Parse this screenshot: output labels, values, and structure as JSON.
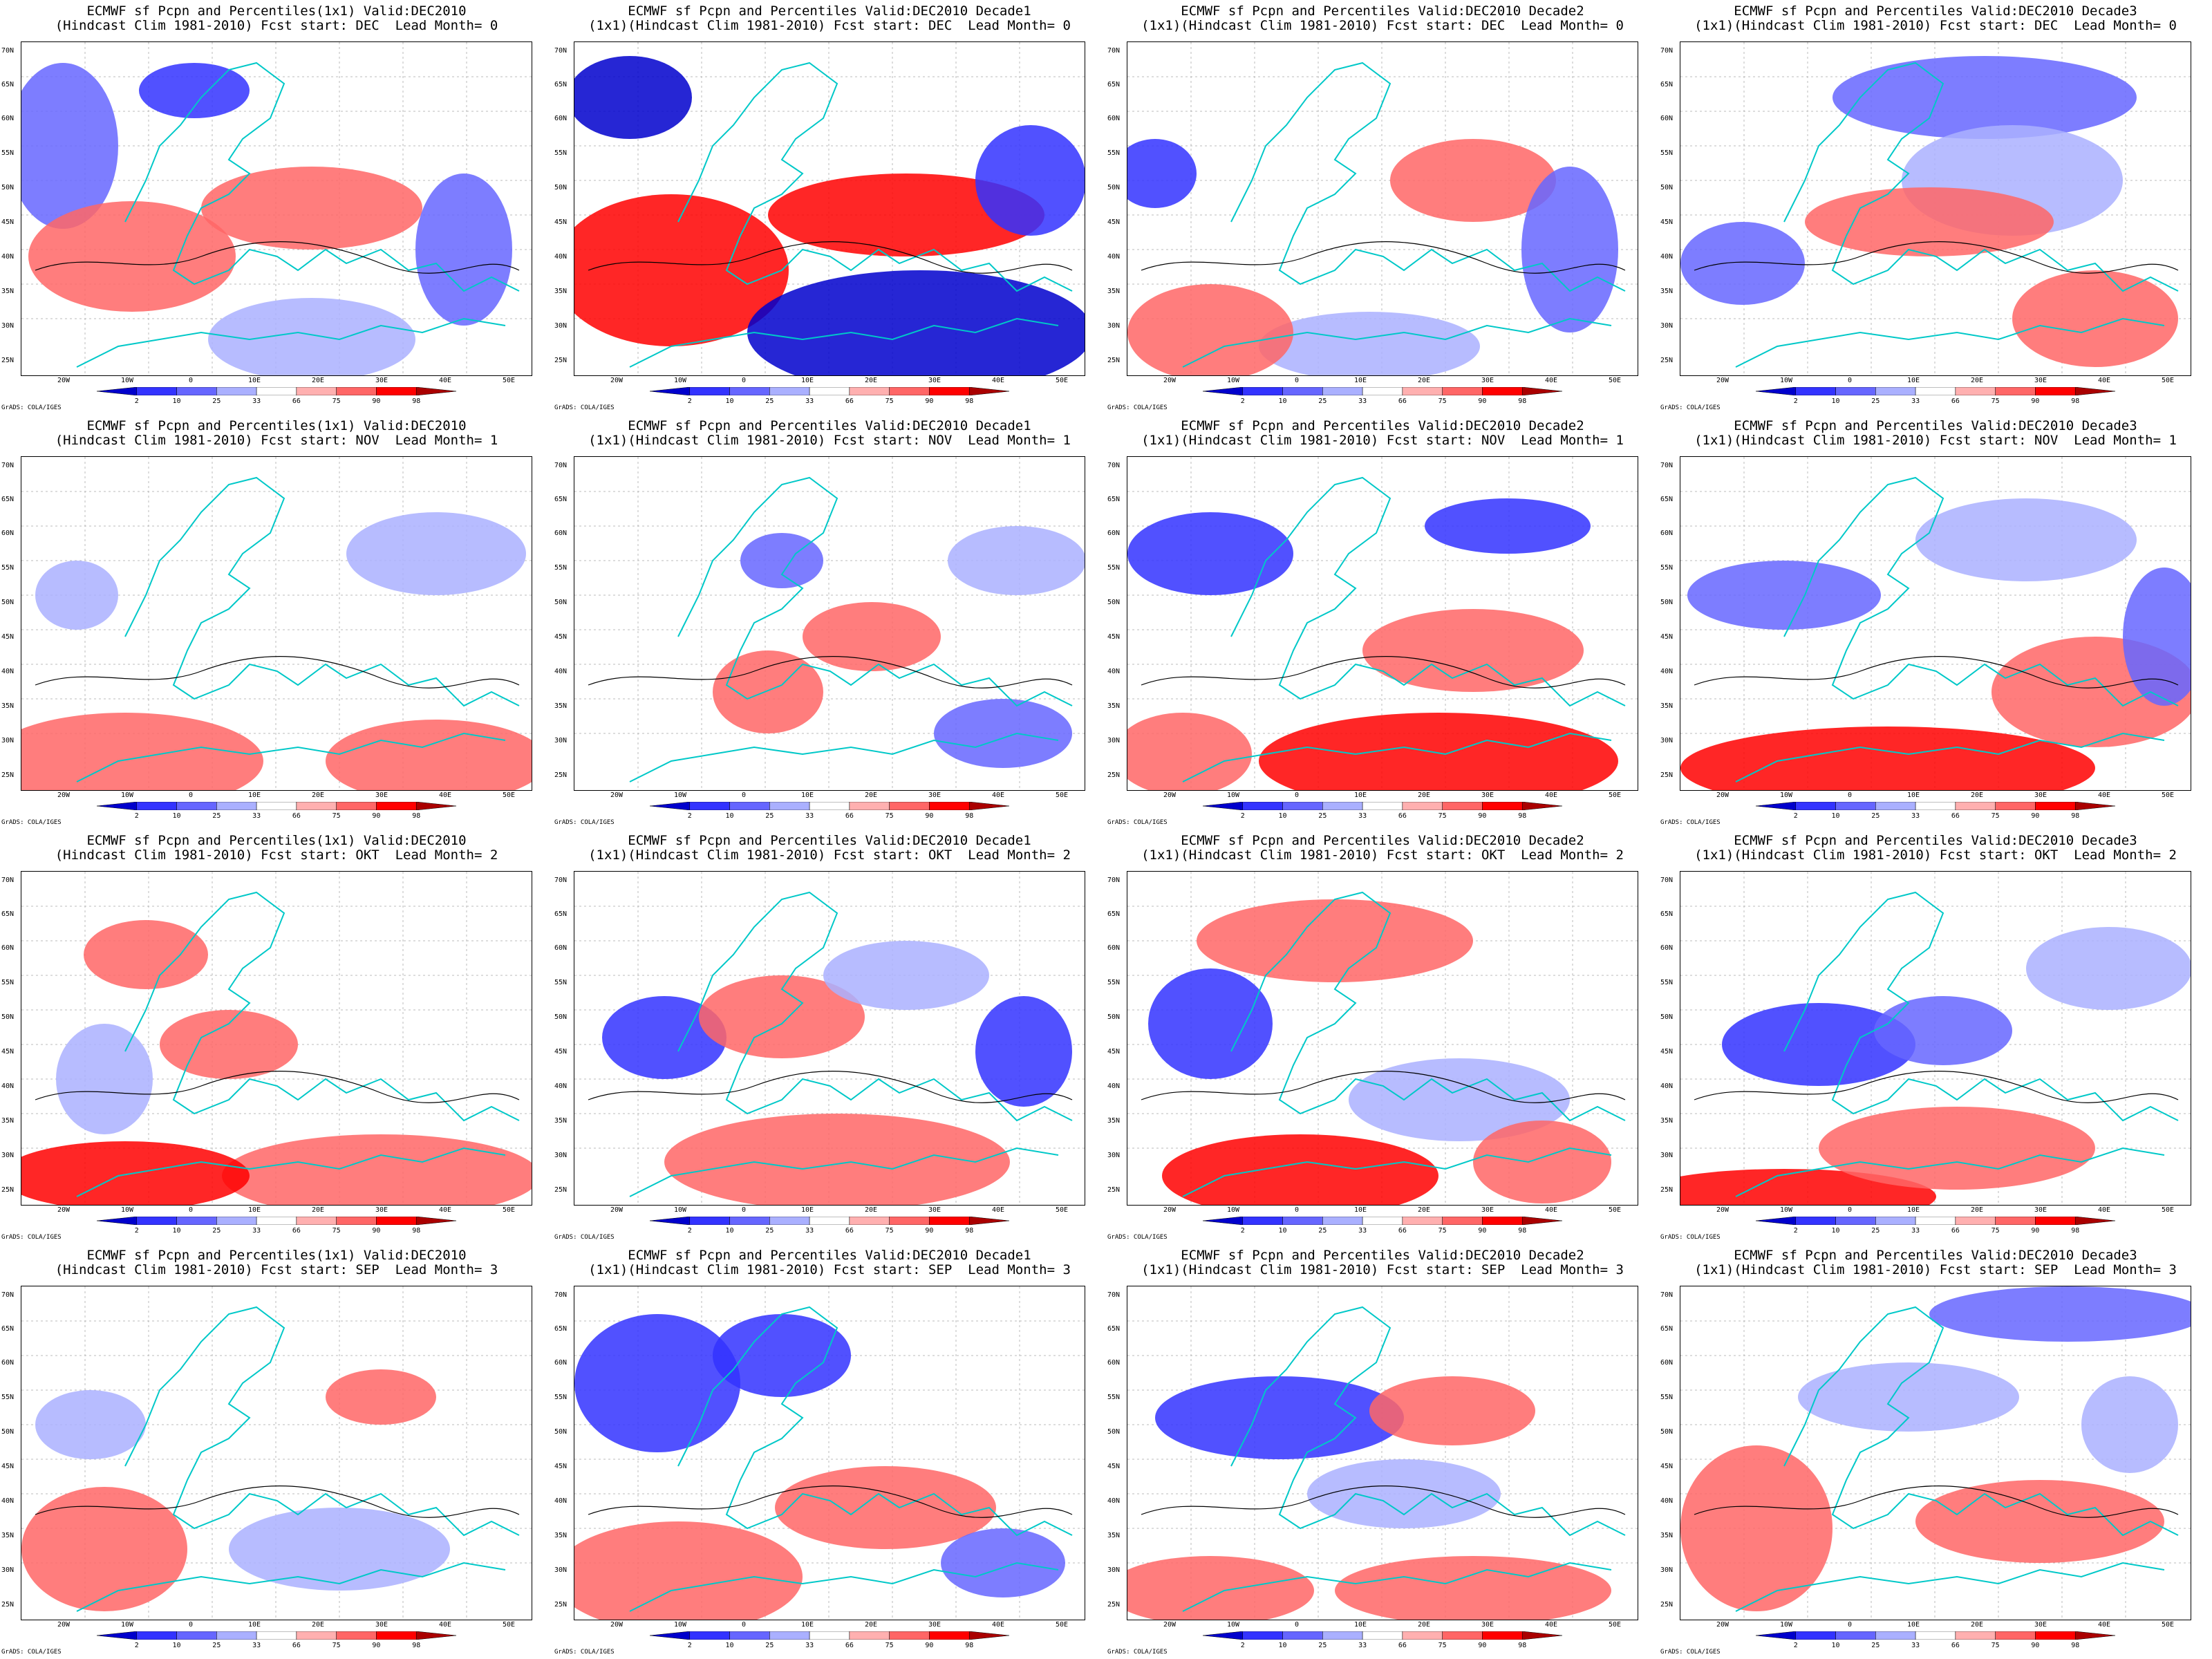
{
  "figure": {
    "lat_labels": [
      "70N",
      "65N",
      "60N",
      "55N",
      "50N",
      "45N",
      "40N",
      "35N",
      "30N",
      "25N"
    ],
    "lon_labels": [
      "20W",
      "10W",
      "0",
      "10E",
      "20E",
      "30E",
      "40E",
      "50E"
    ],
    "colorbar_labels": [
      "2",
      "10",
      "25",
      "33",
      "66",
      "75",
      "90",
      "98"
    ],
    "colorbar_colors": [
      "#0000cc",
      "#3333ff",
      "#6666ff",
      "#aab0ff",
      "#ffffff",
      "#ffb0b0",
      "#ff6666",
      "#ff0000",
      "#aa0000"
    ],
    "credit": "GrADS: COLA/IGES"
  },
  "panels": [
    {
      "title1": "ECMWF sf Pcpn and Percentiles(1x1) Valid:DEC2010",
      "title2": "(Hindcast Clim 1981-2010) Fcst start: DEC  Lead Month= 0"
    },
    {
      "title1": "ECMWF sf Pcpn and Percentiles Valid:DEC2010 Decade1",
      "title2": "(1x1)(Hindcast Clim 1981-2010) Fcst start: DEC  Lead Month= 0"
    },
    {
      "title1": "ECMWF sf Pcpn and Percentiles Valid:DEC2010 Decade2",
      "title2": "(1x1)(Hindcast Clim 1981-2010) Fcst start: DEC  Lead Month= 0"
    },
    {
      "title1": "ECMWF sf Pcpn and Percentiles Valid:DEC2010 Decade3",
      "title2": "(1x1)(Hindcast Clim 1981-2010) Fcst start: DEC  Lead Month= 0"
    },
    {
      "title1": "ECMWF sf Pcpn and Percentiles(1x1) Valid:DEC2010",
      "title2": "(Hindcast Clim 1981-2010) Fcst start: NOV  Lead Month= 1"
    },
    {
      "title1": "ECMWF sf Pcpn and Percentiles Valid:DEC2010 Decade1",
      "title2": "(1x1)(Hindcast Clim 1981-2010) Fcst start: NOV  Lead Month= 1"
    },
    {
      "title1": "ECMWF sf Pcpn and Percentiles Valid:DEC2010 Decade2",
      "title2": "(1x1)(Hindcast Clim 1981-2010) Fcst start: NOV  Lead Month= 1"
    },
    {
      "title1": "ECMWF sf Pcpn and Percentiles Valid:DEC2010 Decade3",
      "title2": "(1x1)(Hindcast Clim 1981-2010) Fcst start: NOV  Lead Month= 1"
    },
    {
      "title1": "ECMWF sf Pcpn and Percentiles(1x1) Valid:DEC2010",
      "title2": "(Hindcast Clim 1981-2010) Fcst start: OKT  Lead Month= 2"
    },
    {
      "title1": "ECMWF sf Pcpn and Percentiles Valid:DEC2010 Decade1",
      "title2": "(1x1)(Hindcast Clim 1981-2010) Fcst start: OKT  Lead Month= 2"
    },
    {
      "title1": "ECMWF sf Pcpn and Percentiles Valid:DEC2010 Decade2",
      "title2": "(1x1)(Hindcast Clim 1981-2010) Fcst start: OKT  Lead Month= 2"
    },
    {
      "title1": "ECMWF sf Pcpn and Percentiles Valid:DEC2010 Decade3",
      "title2": "(1x1)(Hindcast Clim 1981-2010) Fcst start: OKT  Lead Month= 2"
    },
    {
      "title1": "ECMWF sf Pcpn and Percentiles(1x1) Valid:DEC2010",
      "title2": "(Hindcast Clim 1981-2010) Fcst start: SEP  Lead Month= 3"
    },
    {
      "title1": "ECMWF sf Pcpn and Percentiles Valid:DEC2010 Decade1",
      "title2": "(1x1)(Hindcast Clim 1981-2010) Fcst start: SEP  Lead Month= 3"
    },
    {
      "title1": "ECMWF sf Pcpn and Percentiles Valid:DEC2010 Decade2",
      "title2": "(1x1)(Hindcast Clim 1981-2010) Fcst start: SEP  Lead Month= 3"
    },
    {
      "title1": "ECMWF sf Pcpn and Percentiles Valid:DEC2010 Decade3",
      "title2": "(1x1)(Hindcast Clim 1981-2010) Fcst start: SEP  Lead Month= 3"
    }
  ]
}
